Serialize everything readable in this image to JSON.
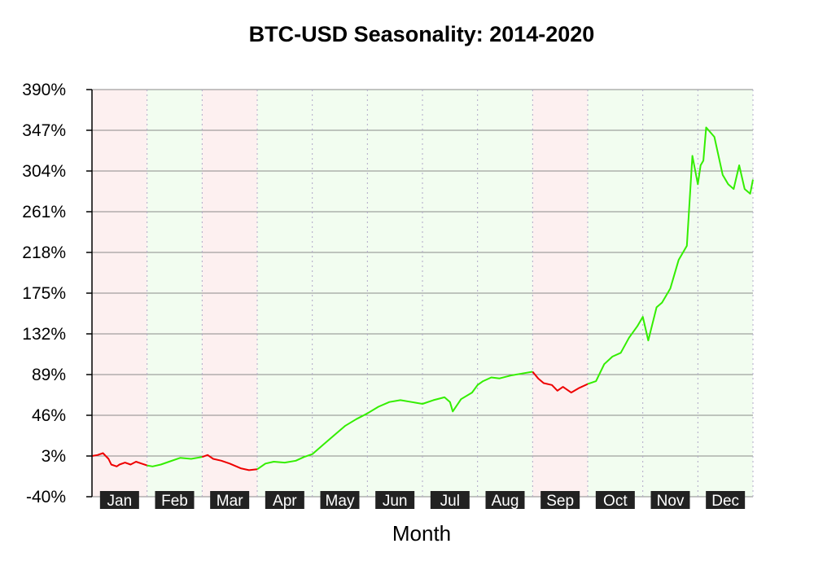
{
  "chart_data": {
    "type": "line",
    "title": "BTC-USD Seasonality: 2014-2020",
    "xlabel": "Month",
    "ylabel": "",
    "ylim": [
      -40,
      390
    ],
    "y_ticks": [
      "390%",
      "347%",
      "304%",
      "261%",
      "218%",
      "175%",
      "132%",
      "89%",
      "46%",
      "3%",
      "-40%"
    ],
    "y_tick_values": [
      390,
      347,
      304,
      261,
      218,
      175,
      132,
      89,
      46,
      3,
      -40
    ],
    "grid": true,
    "months": [
      {
        "label": "Jan",
        "trend": "down"
      },
      {
        "label": "Feb",
        "trend": "up"
      },
      {
        "label": "Mar",
        "trend": "down"
      },
      {
        "label": "Apr",
        "trend": "up"
      },
      {
        "label": "May",
        "trend": "up"
      },
      {
        "label": "Jun",
        "trend": "up"
      },
      {
        "label": "Jul",
        "trend": "up"
      },
      {
        "label": "Aug",
        "trend": "up"
      },
      {
        "label": "Sep",
        "trend": "down"
      },
      {
        "label": "Oct",
        "trend": "up"
      },
      {
        "label": "Nov",
        "trend": "up"
      },
      {
        "label": "Dec",
        "trend": "up"
      }
    ],
    "colors": {
      "up_line": "#33ee00",
      "down_line": "#ee0000",
      "up_band": "#f2fdf0",
      "down_band": "#fdf0f0",
      "month_box": "#222222"
    },
    "series": [
      {
        "x": [
          1.0,
          1.1,
          1.2,
          1.3,
          1.35,
          1.45,
          1.5,
          1.6,
          1.7,
          1.8,
          1.9,
          2.0,
          2.1,
          2.25,
          2.4,
          2.6,
          2.8,
          3.0,
          3.1,
          3.2,
          3.35,
          3.5,
          3.7,
          3.85,
          4.0,
          4.15,
          4.3,
          4.5,
          4.7,
          4.85,
          5.0,
          5.2,
          5.4,
          5.6,
          5.8,
          6.0,
          6.2,
          6.4,
          6.6,
          6.8,
          7.0,
          7.2,
          7.4,
          7.5,
          7.55,
          7.7,
          7.9,
          8.0,
          8.1,
          8.25,
          8.4,
          8.6,
          8.8,
          9.0,
          9.1,
          9.2,
          9.35,
          9.45,
          9.55,
          9.7,
          9.85,
          10.0,
          10.15,
          10.3,
          10.45,
          10.6,
          10.75,
          10.9,
          11.0,
          11.1,
          11.25,
          11.35,
          11.5,
          11.65,
          11.8,
          11.9,
          12.0,
          12.05,
          12.1,
          12.15,
          12.3,
          12.45,
          12.55,
          12.65,
          12.75,
          12.85,
          12.95,
          13.0
        ],
        "y": [
          3,
          4,
          6,
          0,
          -6,
          -8,
          -6,
          -4,
          -6,
          -3,
          -5,
          -7,
          -8,
          -6,
          -3,
          1,
          0,
          2,
          4,
          0,
          -2,
          -5,
          -10,
          -12,
          -11,
          -5,
          -3,
          -4,
          -2,
          2,
          5,
          15,
          25,
          35,
          42,
          48,
          55,
          60,
          62,
          60,
          58,
          62,
          65,
          60,
          50,
          63,
          70,
          78,
          82,
          86,
          85,
          88,
          90,
          92,
          85,
          80,
          78,
          72,
          76,
          70,
          75,
          79,
          82,
          100,
          108,
          112,
          128,
          140,
          150,
          125,
          160,
          165,
          180,
          210,
          225,
          320,
          290,
          310,
          315,
          350,
          340,
          300,
          290,
          285,
          310,
          285,
          280,
          295
        ],
        "segments": [
          {
            "from": 1.0,
            "to": 2.0,
            "trend": "down"
          },
          {
            "from": 2.0,
            "to": 3.0,
            "trend": "up"
          },
          {
            "from": 3.0,
            "to": 4.0,
            "trend": "down"
          },
          {
            "from": 4.0,
            "to": 9.0,
            "trend": "up"
          },
          {
            "from": 9.0,
            "to": 10.0,
            "trend": "down"
          },
          {
            "from": 10.0,
            "to": 13.0,
            "trend": "up"
          }
        ]
      }
    ]
  }
}
